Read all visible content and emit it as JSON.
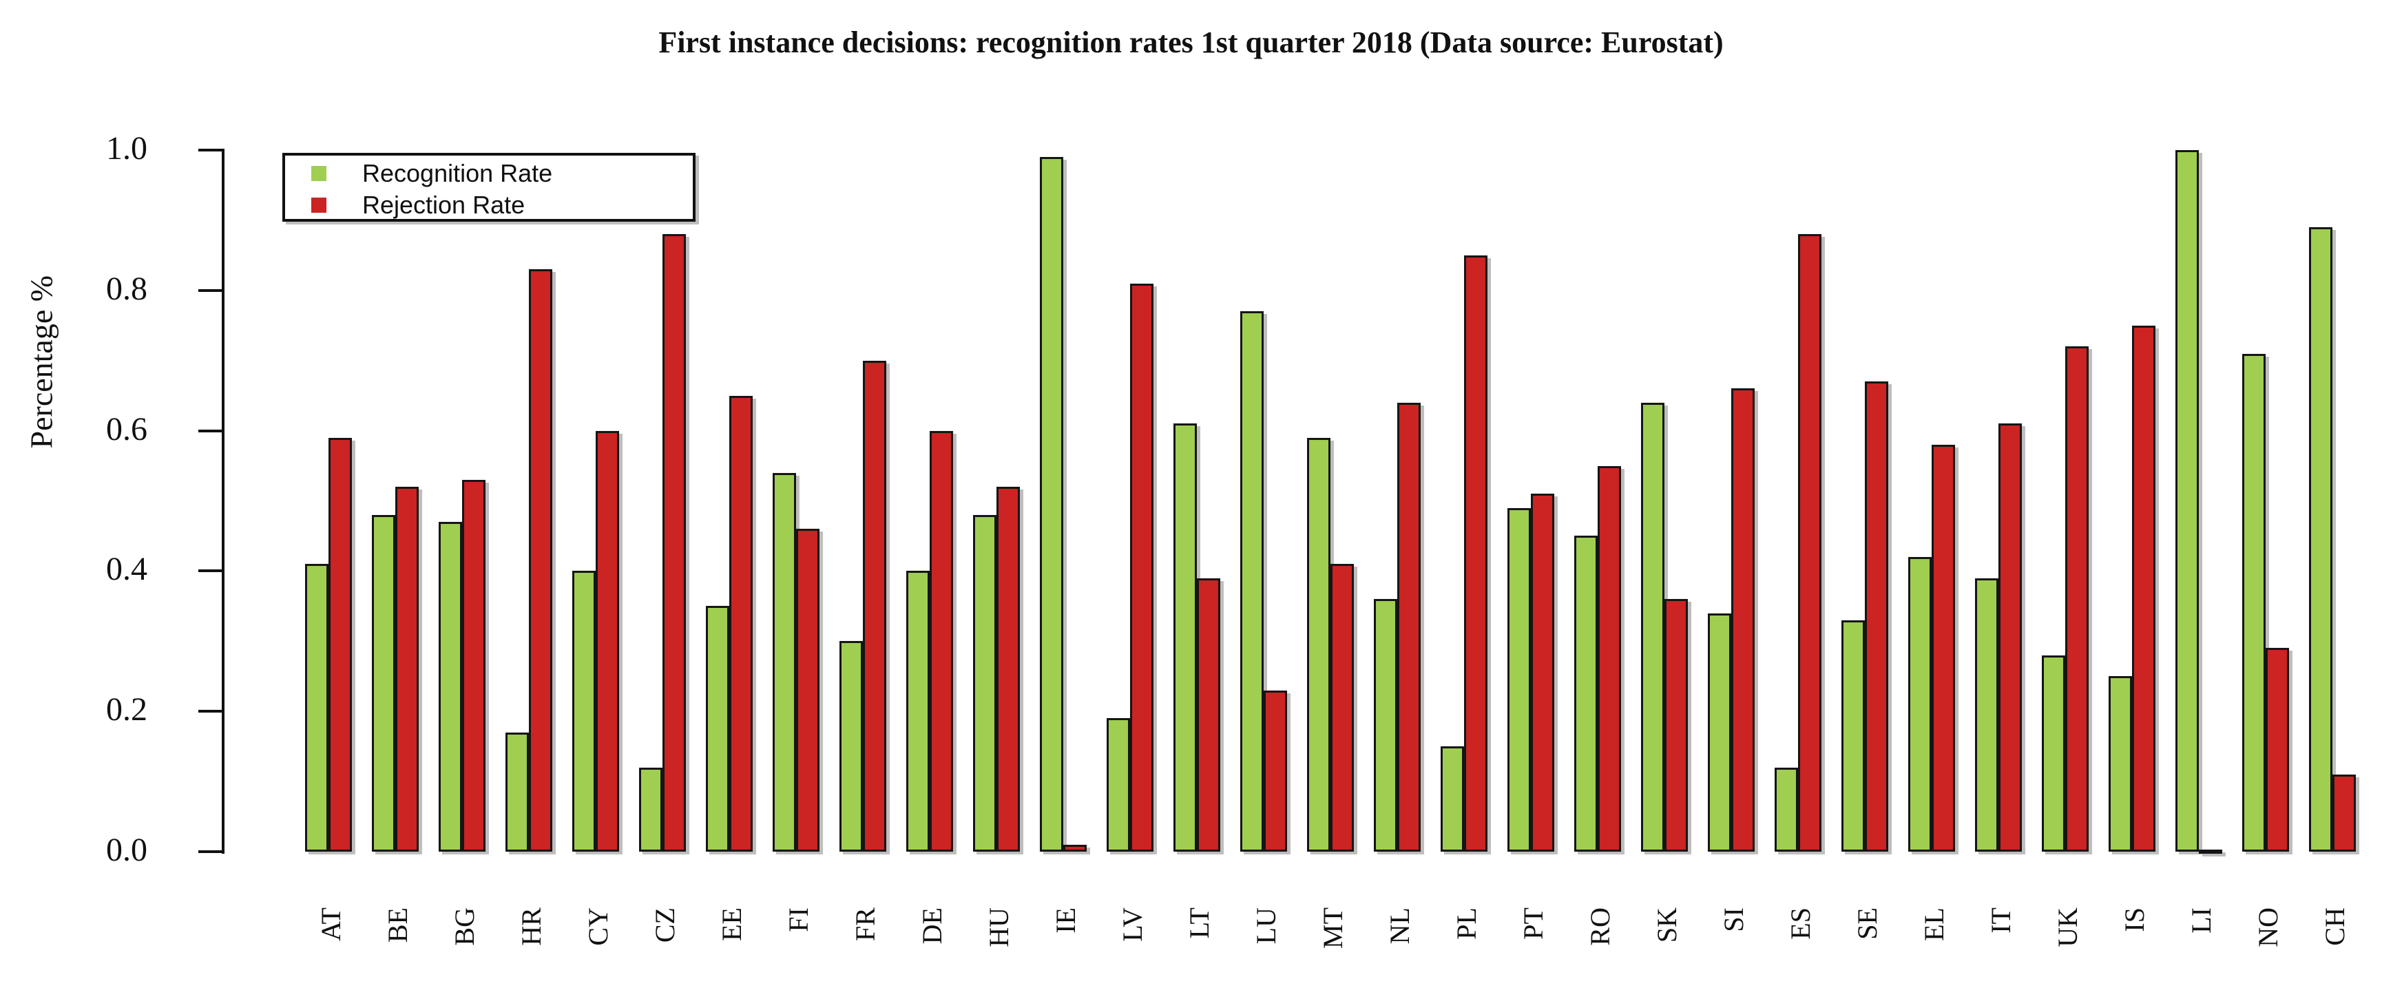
{
  "title": "First instance decisions: recognition rates 1st quarter 2018 (Data source: Eurostat)",
  "y_axis": {
    "label": "Percentage %",
    "ticks": [
      "0.0",
      "0.2",
      "0.4",
      "0.6",
      "0.8",
      "1.0"
    ]
  },
  "legend": {
    "items": [
      {
        "label": "Recognition Rate",
        "color": "#a0ce50"
      },
      {
        "label": "Rejection Rate",
        "color": "#cc2323"
      }
    ]
  },
  "colors": {
    "recognition": "#a0ce50",
    "rejection": "#cc2323",
    "bar_border": "#151515",
    "axis": "#111111"
  },
  "chart_data": {
    "type": "bar",
    "title": "First instance decisions: recognition rates 1st quarter 2018 (Data source: Eurostat)",
    "xlabel": "",
    "ylabel": "Percentage %",
    "ylim": [
      0,
      1.0
    ],
    "y_tick_step": 0.2,
    "grid": false,
    "legend_position": "top-left",
    "categories": [
      "AT",
      "BE",
      "BG",
      "HR",
      "CY",
      "CZ",
      "EE",
      "FI",
      "FR",
      "DE",
      "HU",
      "IE",
      "LV",
      "LT",
      "LU",
      "MT",
      "NL",
      "PL",
      "PT",
      "RO",
      "SK",
      "SI",
      "ES",
      "SE",
      "EL",
      "IT",
      "UK",
      "IS",
      "LI",
      "NO",
      "CH"
    ],
    "series": [
      {
        "name": "Recognition Rate",
        "color": "#a0ce50",
        "values": [
          0.41,
          0.48,
          0.47,
          0.17,
          0.4,
          0.12,
          0.35,
          0.54,
          0.3,
          0.4,
          0.48,
          0.99,
          0.19,
          0.61,
          0.77,
          0.59,
          0.36,
          0.15,
          0.49,
          0.45,
          0.64,
          0.34,
          0.12,
          0.33,
          0.42,
          0.39,
          0.28,
          0.25,
          1.0,
          0.71,
          0.89
        ]
      },
      {
        "name": "Rejection Rate",
        "color": "#cc2323",
        "values": [
          0.59,
          0.52,
          0.53,
          0.83,
          0.6,
          0.88,
          0.65,
          0.46,
          0.7,
          0.6,
          0.52,
          0.01,
          0.81,
          0.39,
          0.23,
          0.41,
          0.64,
          0.85,
          0.51,
          0.55,
          0.36,
          0.66,
          0.88,
          0.67,
          0.58,
          0.61,
          0.72,
          0.75,
          0.0,
          0.29,
          0.11
        ]
      }
    ]
  }
}
